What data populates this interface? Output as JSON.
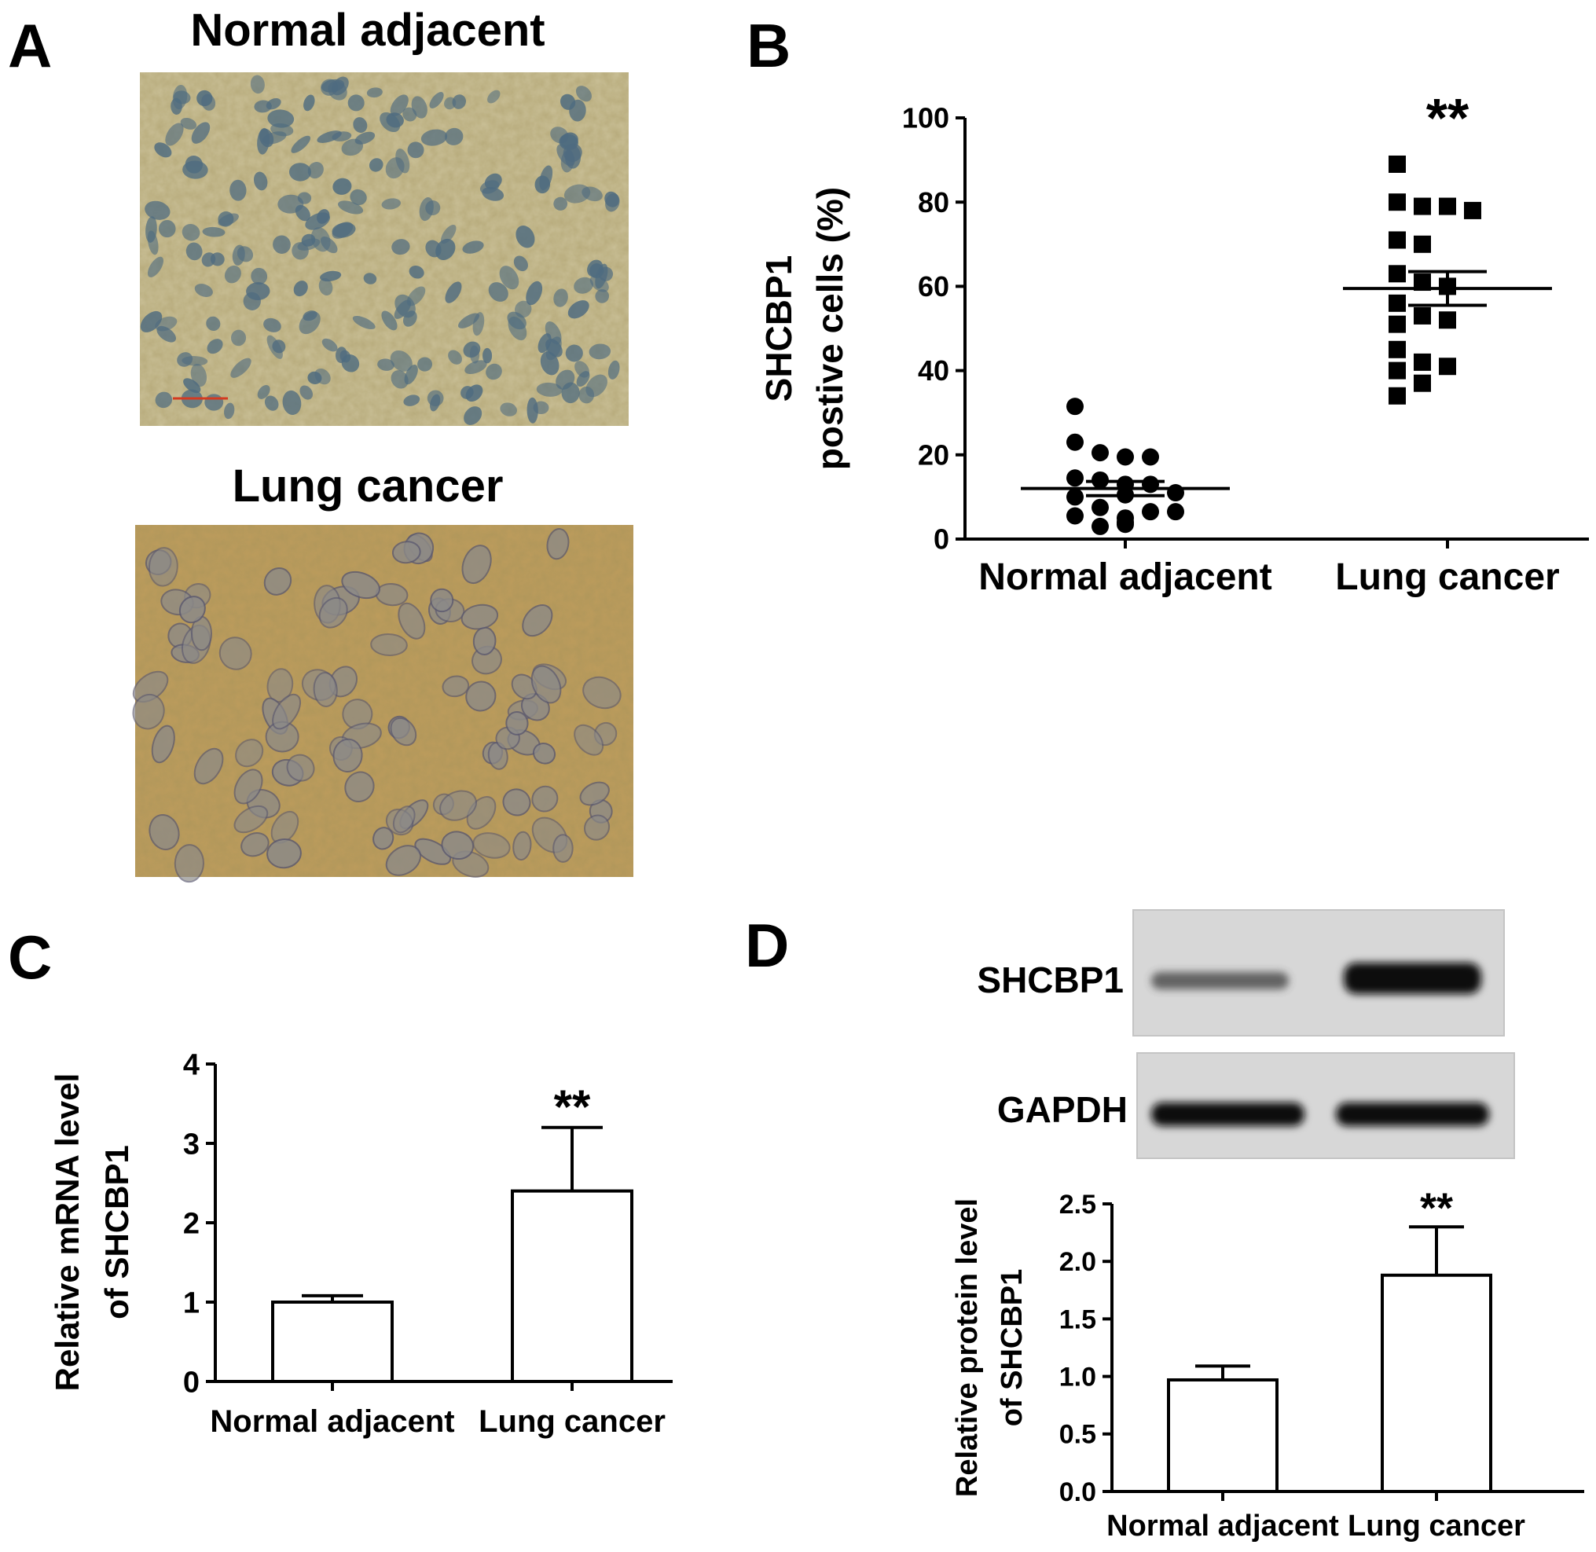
{
  "panel_letters": [
    "A",
    "B",
    "C",
    "D"
  ],
  "panel_a": {
    "top_caption": "Normal adjacent",
    "bottom_caption": "Lung cancer"
  },
  "panel_d_blot": {
    "row_labels": [
      "SHCBP1",
      "GAPDH"
    ]
  },
  "chart_data": [
    {
      "panel": "B",
      "type": "scatter",
      "categories": [
        "Normal adjacent",
        "Lung cancer"
      ],
      "ylabel": [
        "SHCBP1",
        "postive cells (%)"
      ],
      "ylim": [
        0,
        100
      ],
      "yticks": [
        "0",
        "20",
        "40",
        "60",
        "80",
        "100"
      ],
      "significance": [
        "",
        "**"
      ],
      "series": [
        {
          "values": [
            31.5,
            23,
            20.5,
            19.5,
            19.5,
            14.5,
            14,
            13,
            13,
            11,
            10.5,
            10,
            7.5,
            6.5,
            6.5,
            5.5,
            5,
            4,
            3.5,
            3
          ],
          "mean": 12,
          "sem": 1.7
        },
        {
          "values": [
            89,
            80,
            79,
            79,
            78,
            71,
            70,
            63,
            61,
            60,
            56,
            53,
            52,
            51,
            45,
            42,
            41,
            40,
            37,
            34
          ],
          "mean": 59.5,
          "sem": 4
        }
      ]
    },
    {
      "panel": "C",
      "type": "bar",
      "categories": [
        "Normal adjacent",
        "Lung cancer"
      ],
      "values": [
        1.0,
        2.4
      ],
      "errors": [
        0.08,
        0.8
      ],
      "ylabel": [
        "Relative mRNA level",
        "of SHCBP1"
      ],
      "ylim": [
        0,
        4
      ],
      "yticks": [
        "0",
        "1",
        "2",
        "3",
        "4"
      ],
      "significance": [
        "",
        "**"
      ]
    },
    {
      "panel": "D",
      "type": "bar",
      "categories": [
        "Normal adjacent",
        "Lung cancer"
      ],
      "values": [
        0.97,
        1.88
      ],
      "errors": [
        0.12,
        0.42
      ],
      "ylabel": [
        "Relative protein level",
        "of SHCBP1"
      ],
      "ylim": [
        0,
        2.5
      ],
      "yticks": [
        "0.0",
        "0.5",
        "1.0",
        "1.5",
        "2.0",
        "2.5"
      ],
      "significance": [
        "",
        "**"
      ]
    }
  ]
}
